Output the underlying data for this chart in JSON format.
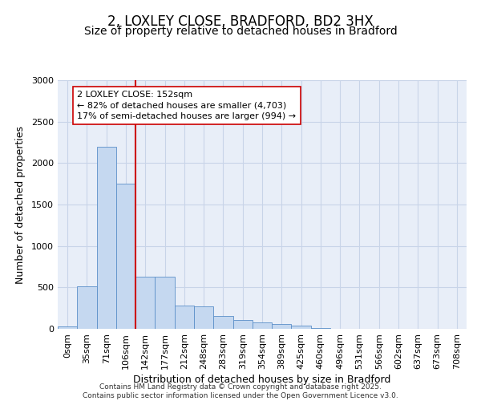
{
  "title": "2, LOXLEY CLOSE, BRADFORD, BD2 3HX",
  "subtitle": "Size of property relative to detached houses in Bradford",
  "xlabel": "Distribution of detached houses by size in Bradford",
  "ylabel": "Number of detached properties",
  "footnote1": "Contains HM Land Registry data © Crown copyright and database right 2025.",
  "footnote2": "Contains public sector information licensed under the Open Government Licence v3.0.",
  "bar_labels": [
    "0sqm",
    "35sqm",
    "71sqm",
    "106sqm",
    "142sqm",
    "177sqm",
    "212sqm",
    "248sqm",
    "283sqm",
    "319sqm",
    "354sqm",
    "389sqm",
    "425sqm",
    "460sqm",
    "496sqm",
    "531sqm",
    "566sqm",
    "602sqm",
    "637sqm",
    "673sqm",
    "708sqm"
  ],
  "bar_values": [
    30,
    510,
    2200,
    1750,
    630,
    630,
    280,
    270,
    155,
    110,
    80,
    55,
    40,
    10,
    0,
    0,
    0,
    0,
    0,
    0,
    0
  ],
  "bar_color": "#c5d8f0",
  "bar_edge_color": "#5b8fc9",
  "vline_index": 4,
  "vline_color": "#cc0000",
  "annotation_text": "2 LOXLEY CLOSE: 152sqm\n← 82% of detached houses are smaller (4,703)\n17% of semi-detached houses are larger (994) →",
  "annotation_box_color": "#ffffff",
  "annotation_box_edge": "#cc0000",
  "ylim": [
    0,
    3000
  ],
  "yticks": [
    0,
    500,
    1000,
    1500,
    2000,
    2500,
    3000
  ],
  "grid_color": "#c8d4e8",
  "bg_color": "#e8eef8",
  "title_fontsize": 12,
  "subtitle_fontsize": 10,
  "axis_label_fontsize": 9,
  "tick_fontsize": 8,
  "annot_fontsize": 8
}
